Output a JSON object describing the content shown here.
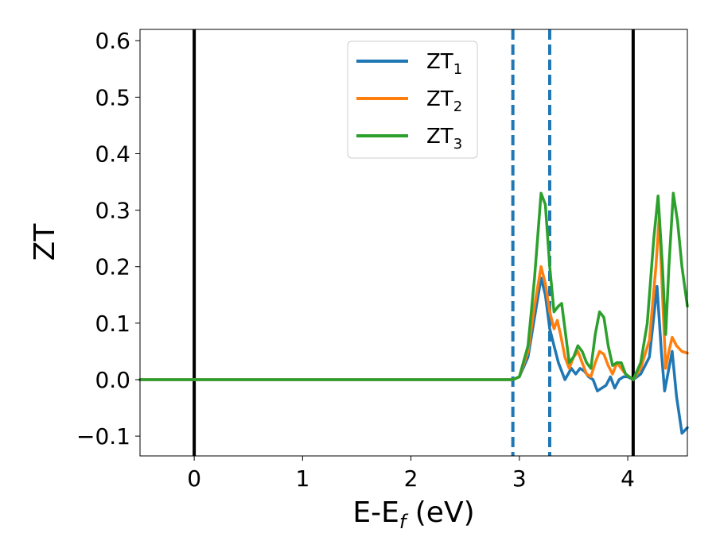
{
  "chart_data": {
    "type": "line",
    "xlabel_main": "E-E",
    "xlabel_sub": "f",
    "xlabel_unit": " (eV)",
    "ylabel": "ZT",
    "xlim": [
      -0.5,
      4.55
    ],
    "ylim": [
      -0.135,
      0.62
    ],
    "x_ticks": [
      0,
      1,
      2,
      3,
      4
    ],
    "x_tick_labels": [
      "0",
      "1",
      "2",
      "3",
      "4"
    ],
    "y_ticks": [
      -0.1,
      0.0,
      0.1,
      0.2,
      0.3,
      0.4,
      0.5,
      0.6
    ],
    "y_tick_labels": [
      "−0.1",
      "0.0",
      "0.1",
      "0.2",
      "0.3",
      "0.4",
      "0.5",
      "0.6"
    ],
    "grid": false,
    "legend_position": "top-center",
    "vertical_lines": [
      {
        "x": 0.0,
        "style": "solid",
        "color": "#000000"
      },
      {
        "x": 4.05,
        "style": "solid",
        "color": "#000000"
      },
      {
        "x": 2.94,
        "style": "dashed",
        "color": "#1f77b4"
      },
      {
        "x": 3.28,
        "style": "dashed",
        "color": "#1f77b4"
      }
    ],
    "series": [
      {
        "name_main": "ZT",
        "name_sub": "1",
        "color": "#1f77b4",
        "points": [
          [
            -0.5,
            0
          ],
          [
            2.94,
            0
          ],
          [
            3.0,
            0.005
          ],
          [
            3.08,
            0.04
          ],
          [
            3.14,
            0.11
          ],
          [
            3.2,
            0.18
          ],
          [
            3.24,
            0.15
          ],
          [
            3.28,
            0.09
          ],
          [
            3.32,
            0.06
          ],
          [
            3.36,
            0.03
          ],
          [
            3.42,
            0.0
          ],
          [
            3.48,
            0.02
          ],
          [
            3.52,
            0.01
          ],
          [
            3.56,
            0.02
          ],
          [
            3.6,
            0.015
          ],
          [
            3.64,
            0.005
          ],
          [
            3.68,
            0.0
          ],
          [
            3.72,
            -0.02
          ],
          [
            3.76,
            -0.015
          ],
          [
            3.8,
            -0.01
          ],
          [
            3.84,
            0.005
          ],
          [
            3.88,
            -0.015
          ],
          [
            3.92,
            0.0
          ],
          [
            3.96,
            0.005
          ],
          [
            4.0,
            0.005
          ],
          [
            4.05,
            0.0
          ],
          [
            4.12,
            0.01
          ],
          [
            4.2,
            0.04
          ],
          [
            4.27,
            0.165
          ],
          [
            4.31,
            0.05
          ],
          [
            4.34,
            -0.02
          ],
          [
            4.38,
            0.02
          ],
          [
            4.41,
            0.05
          ],
          [
            4.45,
            -0.03
          ],
          [
            4.5,
            -0.095
          ],
          [
            4.55,
            -0.085
          ]
        ]
      },
      {
        "name_main": "ZT",
        "name_sub": "2",
        "color": "#ff7f0e",
        "points": [
          [
            -0.5,
            0
          ],
          [
            2.94,
            0
          ],
          [
            3.0,
            0.005
          ],
          [
            3.08,
            0.05
          ],
          [
            3.14,
            0.13
          ],
          [
            3.2,
            0.2
          ],
          [
            3.24,
            0.17
          ],
          [
            3.28,
            0.12
          ],
          [
            3.32,
            0.09
          ],
          [
            3.35,
            0.105
          ],
          [
            3.38,
            0.08
          ],
          [
            3.42,
            0.04
          ],
          [
            3.46,
            0.02
          ],
          [
            3.5,
            0.04
          ],
          [
            3.54,
            0.05
          ],
          [
            3.58,
            0.03
          ],
          [
            3.62,
            0.01
          ],
          [
            3.66,
            0.005
          ],
          [
            3.7,
            0.03
          ],
          [
            3.74,
            0.05
          ],
          [
            3.78,
            0.045
          ],
          [
            3.82,
            0.025
          ],
          [
            3.86,
            0.01
          ],
          [
            3.9,
            0.03
          ],
          [
            3.94,
            0.02
          ],
          [
            3.98,
            0.01
          ],
          [
            4.05,
            0.0
          ],
          [
            4.12,
            0.02
          ],
          [
            4.2,
            0.07
          ],
          [
            4.26,
            0.2
          ],
          [
            4.29,
            0.29
          ],
          [
            4.32,
            0.15
          ],
          [
            4.35,
            0.02
          ],
          [
            4.38,
            0.05
          ],
          [
            4.41,
            0.075
          ],
          [
            4.45,
            0.06
          ],
          [
            4.5,
            0.05
          ],
          [
            4.55,
            0.047
          ]
        ]
      },
      {
        "name_main": "ZT",
        "name_sub": "3",
        "color": "#2ca02c",
        "points": [
          [
            -0.5,
            0
          ],
          [
            2.94,
            0
          ],
          [
            3.0,
            0.005
          ],
          [
            3.08,
            0.06
          ],
          [
            3.14,
            0.18
          ],
          [
            3.2,
            0.33
          ],
          [
            3.24,
            0.31
          ],
          [
            3.28,
            0.2
          ],
          [
            3.32,
            0.12
          ],
          [
            3.36,
            0.13
          ],
          [
            3.39,
            0.135
          ],
          [
            3.42,
            0.09
          ],
          [
            3.46,
            0.03
          ],
          [
            3.5,
            0.04
          ],
          [
            3.54,
            0.06
          ],
          [
            3.58,
            0.05
          ],
          [
            3.62,
            0.03
          ],
          [
            3.66,
            0.02
          ],
          [
            3.7,
            0.08
          ],
          [
            3.74,
            0.12
          ],
          [
            3.78,
            0.11
          ],
          [
            3.82,
            0.06
          ],
          [
            3.86,
            0.025
          ],
          [
            3.9,
            0.03
          ],
          [
            3.94,
            0.03
          ],
          [
            3.98,
            0.01
          ],
          [
            4.05,
            0.0
          ],
          [
            4.12,
            0.03
          ],
          [
            4.18,
            0.1
          ],
          [
            4.24,
            0.25
          ],
          [
            4.28,
            0.325
          ],
          [
            4.32,
            0.2
          ],
          [
            4.35,
            0.08
          ],
          [
            4.38,
            0.2
          ],
          [
            4.42,
            0.33
          ],
          [
            4.46,
            0.28
          ],
          [
            4.5,
            0.2
          ],
          [
            4.55,
            0.13
          ]
        ]
      }
    ]
  }
}
